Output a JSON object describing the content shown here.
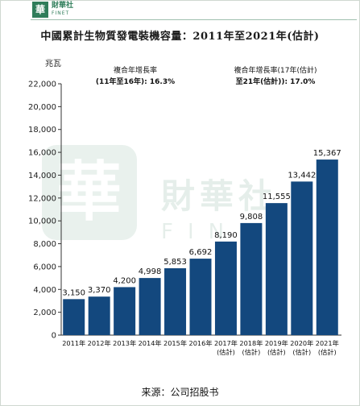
{
  "brand": {
    "logo_char": "華",
    "name_cn": "財華社",
    "name_en": "FINET"
  },
  "title": "中國累計生物質發電裝機容量：2011年至2021年(估計)",
  "watermark": {
    "glyph": "華",
    "name_cn": "財華社",
    "name_en": "FINET"
  },
  "source": "来源：公司招股书",
  "colors": {
    "bar": "#13487e",
    "axis": "#333333",
    "grid": "#cfcfcf",
    "brand": "#2f7d5a"
  },
  "chart_data": {
    "type": "bar",
    "title": "中國累計生物質發電裝機容量：2011年至2021年(估計)",
    "ylabel": "兆瓦",
    "xlabel": "",
    "ylim": [
      0,
      22000
    ],
    "yticks": [
      "0",
      "2,000",
      "4,000",
      "6,000",
      "8,000",
      "10,000",
      "12,000",
      "14,000",
      "16,000",
      "18,000",
      "20,000",
      "22,000"
    ],
    "ytick_values": [
      0,
      2000,
      4000,
      6000,
      8000,
      10000,
      12000,
      14000,
      16000,
      18000,
      20000,
      22000
    ],
    "categories": [
      "2011年",
      "2012年",
      "2013年",
      "2014年",
      "2015年",
      "2016年",
      "2017年(估計)",
      "2018年(估計)",
      "2019年(估計)",
      "2020年(估計)",
      "2021年(估計)"
    ],
    "category_lines": [
      [
        "2011年"
      ],
      [
        "2012年"
      ],
      [
        "2013年"
      ],
      [
        "2014年"
      ],
      [
        "2015年"
      ],
      [
        "2016年"
      ],
      [
        "2017年",
        "(估計)"
      ],
      [
        "2018年",
        "(估計)"
      ],
      [
        "2019年",
        "(估計)"
      ],
      [
        "2020年",
        "(估計)"
      ],
      [
        "2021年",
        "(估計)"
      ]
    ],
    "values": [
      3150,
      3370,
      4200,
      4998,
      5853,
      6692,
      8190,
      9808,
      11555,
      13442,
      15367
    ],
    "value_labels": [
      "3,150",
      "3,370",
      "4,200",
      "4,998",
      "5,853",
      "6,692",
      "8,190",
      "9,808",
      "11,555",
      "13,442",
      "15,367"
    ],
    "annotations": [
      {
        "line1": "複合年增長率",
        "line2": "(11年至16年): 16.3%"
      },
      {
        "line1": "複合年增長率(17年(估計)",
        "line2": "至21年(估計)): 17.0%"
      }
    ],
    "grid": false,
    "legend": "none"
  }
}
